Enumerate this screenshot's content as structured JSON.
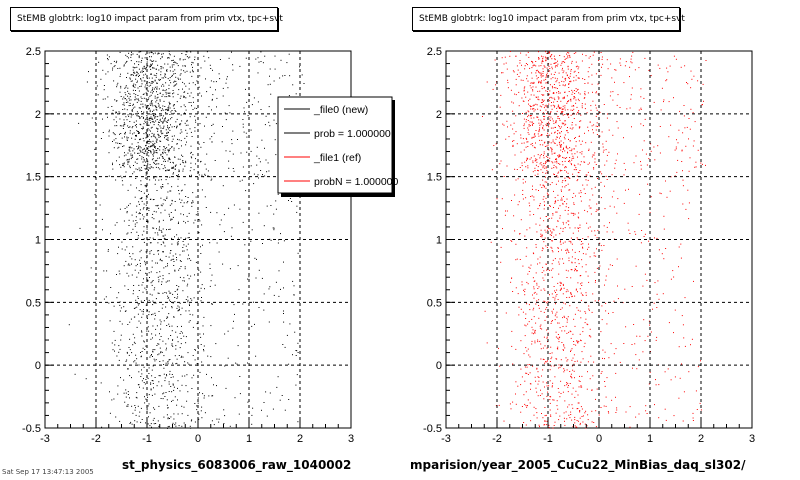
{
  "colors": {
    "new": "#000000",
    "ref": "#ff0000",
    "grid": "#000000",
    "background": "#ffffff"
  },
  "chart_data": [
    {
      "type": "scatter",
      "title": "StEMB globtrk: log10 impact param from prim vtx, tpc+svt",
      "xlabel": "st_physics_6083006_raw_1040002",
      "ylabel": "",
      "xlim": [
        -3,
        3
      ],
      "ylim": [
        -0.5,
        2.5
      ],
      "xticks": [
        "-3",
        "-2",
        "-1",
        "0",
        "1",
        "2",
        "3"
      ],
      "yticks": [
        "-0.5",
        "0",
        "0.5",
        "1",
        "1.5",
        "2",
        "2.5"
      ],
      "grid": true,
      "legend_position": "top-right",
      "legend": [
        {
          "label": "_file0 (new)",
          "color": "#000000"
        },
        {
          "label": "prob = 1.000000",
          "color": "#000000"
        },
        {
          "label": "_file1 (ref)",
          "color": "#ff0000"
        },
        {
          "label": "probN = 1.000000",
          "color": "#ff0000"
        }
      ],
      "series": [
        {
          "color": "#000000",
          "seed": 7
        }
      ]
    },
    {
      "type": "scatter",
      "title": "StEMB globtrk: log10 impact param from prim vtx, tpc+svt",
      "xlabel": "mparision/year_2005_CuCu22_MinBias_daq_sl302/",
      "ylabel": "",
      "xlim": [
        -3,
        3
      ],
      "ylim": [
        -0.5,
        2.5
      ],
      "xticks": [
        "-3",
        "-2",
        "-1",
        "0",
        "1",
        "2",
        "3"
      ],
      "yticks": [
        "-0.5",
        "0",
        "0.5",
        "1",
        "1.5",
        "2",
        "2.5"
      ],
      "grid": true,
      "series": [
        {
          "color": "#ff0000",
          "seed": 13
        }
      ]
    }
  ],
  "footer": "Sat Sep 17 13:47:13 2005"
}
